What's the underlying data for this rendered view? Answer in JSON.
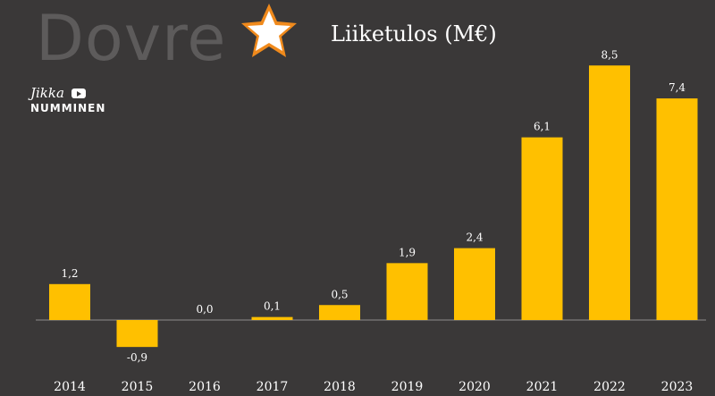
{
  "logo": {
    "text": "Dovre",
    "icon": "star-logo-icon"
  },
  "channel": {
    "first": "Jikka",
    "last": "NUMMINEN",
    "icon": "youtube-icon"
  },
  "colors": {
    "bar": "#ffc000",
    "background": "#3a3838",
    "text": "#ffffff",
    "axis": "#8f8c8c"
  },
  "chart_data": {
    "type": "bar",
    "title": "Liiketulos (M€)",
    "xlabel": "",
    "ylabel": "",
    "categories": [
      "2014",
      "2015",
      "2016",
      "2017",
      "2018",
      "2019",
      "2020",
      "2021",
      "2022",
      "2023"
    ],
    "values": [
      1.2,
      -0.9,
      0.0,
      0.1,
      0.5,
      1.9,
      2.4,
      6.1,
      8.5,
      7.4
    ],
    "value_labels": [
      "1,2",
      "-0,9",
      "0,0",
      "0,1",
      "0,5",
      "1,9",
      "2,4",
      "6,1",
      "8,5",
      "7,4"
    ],
    "grid": false,
    "legend": "none"
  }
}
